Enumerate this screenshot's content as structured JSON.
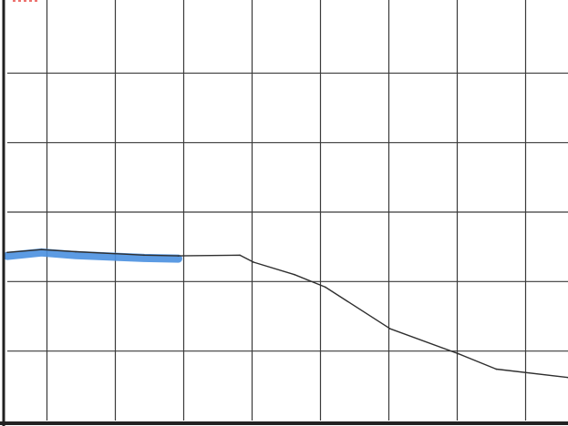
{
  "chart_data": {
    "type": "line",
    "title": "",
    "xlabel": "",
    "ylabel": "",
    "grid": true,
    "legend": "none",
    "xlim": [
      0,
      8.2
    ],
    "ylim": [
      0,
      6
    ],
    "x_gridlines": [
      0.58,
      1.58,
      2.58,
      3.58,
      4.58,
      5.58,
      6.58,
      7.58
    ],
    "y_gridlines": [
      1,
      2,
      3,
      4,
      5
    ],
    "colors": {
      "grid": "#3a3a3a",
      "line": "#2f2f2f",
      "highlight": "#4a90e0",
      "header_mark": "#e53935",
      "axis_edge": "#222222"
    },
    "series": [
      {
        "values": [
          {
            "x": 0.0,
            "y": 2.42
          },
          {
            "x": 0.5,
            "y": 2.46
          },
          {
            "x": 1.0,
            "y": 2.43
          },
          {
            "x": 2.0,
            "y": 2.38
          },
          {
            "x": 2.5,
            "y": 2.37
          },
          {
            "x": 3.4,
            "y": 2.38
          },
          {
            "x": 3.6,
            "y": 2.28
          },
          {
            "x": 4.2,
            "y": 2.1
          },
          {
            "x": 4.65,
            "y": 1.92
          },
          {
            "x": 5.6,
            "y": 1.32
          },
          {
            "x": 6.6,
            "y": 0.96
          },
          {
            "x": 7.15,
            "y": 0.74
          },
          {
            "x": 8.2,
            "y": 0.62
          }
        ]
      }
    ],
    "highlight_segment": [
      {
        "x": 0.0,
        "y": 2.37
      },
      {
        "x": 0.5,
        "y": 2.42
      },
      {
        "x": 1.0,
        "y": 2.38
      },
      {
        "x": 2.0,
        "y": 2.34
      },
      {
        "x": 2.5,
        "y": 2.33
      }
    ]
  }
}
